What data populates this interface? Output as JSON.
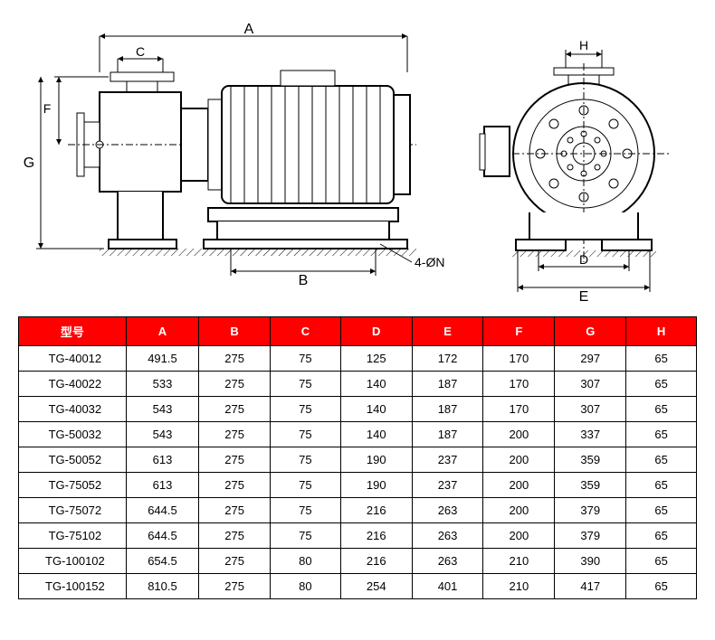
{
  "diagram": {
    "labels": {
      "A": "A",
      "B": "B",
      "C": "C",
      "D": "D",
      "E": "E",
      "F": "F",
      "G": "G",
      "H": "H",
      "bolt": "4-ØN"
    },
    "colors": {
      "stroke": "#000000",
      "dim_text": "#000000",
      "hatch": "#000000"
    }
  },
  "table": {
    "header_bg": "#ff0000",
    "header_fg": "#ffffff",
    "columns": [
      "型号",
      "A",
      "B",
      "C",
      "D",
      "E",
      "F",
      "G",
      "H"
    ],
    "col_widths": [
      "120px",
      "78px",
      "78px",
      "78px",
      "78px",
      "78px",
      "78px",
      "78px",
      "78px"
    ],
    "rows": [
      [
        "TG-40012",
        "491.5",
        "275",
        "75",
        "125",
        "172",
        "170",
        "297",
        "65"
      ],
      [
        "TG-40022",
        "533",
        "275",
        "75",
        "140",
        "187",
        "170",
        "307",
        "65"
      ],
      [
        "TG-40032",
        "543",
        "275",
        "75",
        "140",
        "187",
        "170",
        "307",
        "65"
      ],
      [
        "TG-50032",
        "543",
        "275",
        "75",
        "140",
        "187",
        "200",
        "337",
        "65"
      ],
      [
        "TG-50052",
        "613",
        "275",
        "75",
        "190",
        "237",
        "200",
        "359",
        "65"
      ],
      [
        "TG-75052",
        "613",
        "275",
        "75",
        "190",
        "237",
        "200",
        "359",
        "65"
      ],
      [
        "TG-75072",
        "644.5",
        "275",
        "75",
        "216",
        "263",
        "200",
        "379",
        "65"
      ],
      [
        "TG-75102",
        "644.5",
        "275",
        "75",
        "216",
        "263",
        "200",
        "379",
        "65"
      ],
      [
        "TG-100102",
        "654.5",
        "275",
        "80",
        "216",
        "263",
        "210",
        "390",
        "65"
      ],
      [
        "TG-100152",
        "810.5",
        "275",
        "80",
        "254",
        "401",
        "210",
        "417",
        "65"
      ]
    ]
  }
}
